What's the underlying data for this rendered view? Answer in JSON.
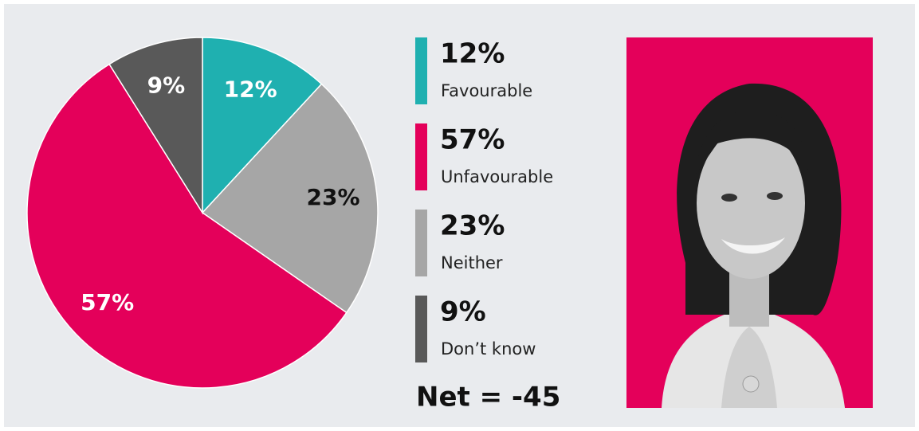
{
  "chart_data": {
    "type": "pie",
    "categories": [
      "Favourable",
      "Unfavourable",
      "Neither",
      "Don’t know"
    ],
    "values": [
      12,
      57,
      23,
      9
    ],
    "value_labels": [
      "12%",
      "57%",
      "23%",
      "9%"
    ],
    "colors": [
      "#1fb0b0",
      "#e4005a",
      "#a6a6a6",
      "#595959"
    ],
    "net": "Net = -45"
  }
}
